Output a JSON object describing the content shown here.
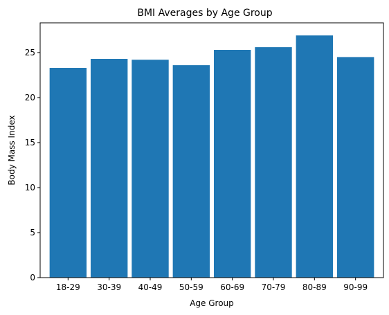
{
  "chart_data": {
    "type": "bar",
    "title": "BMI Averages by Age Group",
    "xlabel": "Age Group",
    "ylabel": "Body Mass Index",
    "categories": [
      "18-29",
      "30-39",
      "40-49",
      "50-59",
      "60-69",
      "70-79",
      "80-89",
      "90-99"
    ],
    "values": [
      23.3,
      24.3,
      24.2,
      23.6,
      25.3,
      25.6,
      26.9,
      24.5
    ],
    "ylim": [
      0,
      28.3
    ],
    "yticks": [
      0,
      5,
      10,
      15,
      20,
      25
    ],
    "grid": false,
    "legend": "none",
    "bar_color": "#1f77b4"
  }
}
